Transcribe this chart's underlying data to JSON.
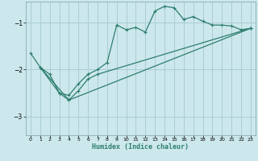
{
  "xlabel": "Humidex (Indice chaleur)",
  "bg_color": "#cce8ec",
  "line_color": "#2e7d6e",
  "grid_color": "#aacdd4",
  "xlim": [
    -0.5,
    23.5
  ],
  "ylim": [
    -3.4,
    -0.55
  ],
  "yticks": [
    -3,
    -2,
    -1
  ],
  "xticks": [
    0,
    1,
    2,
    3,
    4,
    5,
    6,
    7,
    8,
    9,
    10,
    11,
    12,
    13,
    14,
    15,
    16,
    17,
    18,
    19,
    20,
    21,
    22,
    23
  ],
  "series1": [
    [
      0,
      -1.65
    ],
    [
      1,
      -1.95
    ],
    [
      2,
      -2.1
    ],
    [
      3,
      -2.5
    ],
    [
      4,
      -2.55
    ],
    [
      5,
      -2.3
    ],
    [
      6,
      -2.1
    ],
    [
      7,
      -2.0
    ],
    [
      8,
      -1.85
    ],
    [
      9,
      -1.05
    ],
    [
      10,
      -1.15
    ],
    [
      11,
      -1.1
    ],
    [
      12,
      -1.2
    ],
    [
      13,
      -0.75
    ],
    [
      14,
      -0.65
    ],
    [
      15,
      -0.68
    ],
    [
      16,
      -0.93
    ],
    [
      17,
      -0.87
    ],
    [
      18,
      -0.97
    ],
    [
      19,
      -1.05
    ],
    [
      20,
      -1.05
    ],
    [
      21,
      -1.07
    ],
    [
      22,
      -1.15
    ],
    [
      23,
      -1.12
    ]
  ],
  "series2": [
    [
      1,
      -1.95
    ],
    [
      3,
      -2.5
    ],
    [
      4,
      -2.65
    ],
    [
      5,
      -2.45
    ],
    [
      6,
      -2.2
    ],
    [
      7,
      -2.1
    ],
    [
      23,
      -1.12
    ]
  ],
  "series3": [
    [
      1,
      -1.95
    ],
    [
      4,
      -2.65
    ],
    [
      23,
      -1.12
    ]
  ]
}
